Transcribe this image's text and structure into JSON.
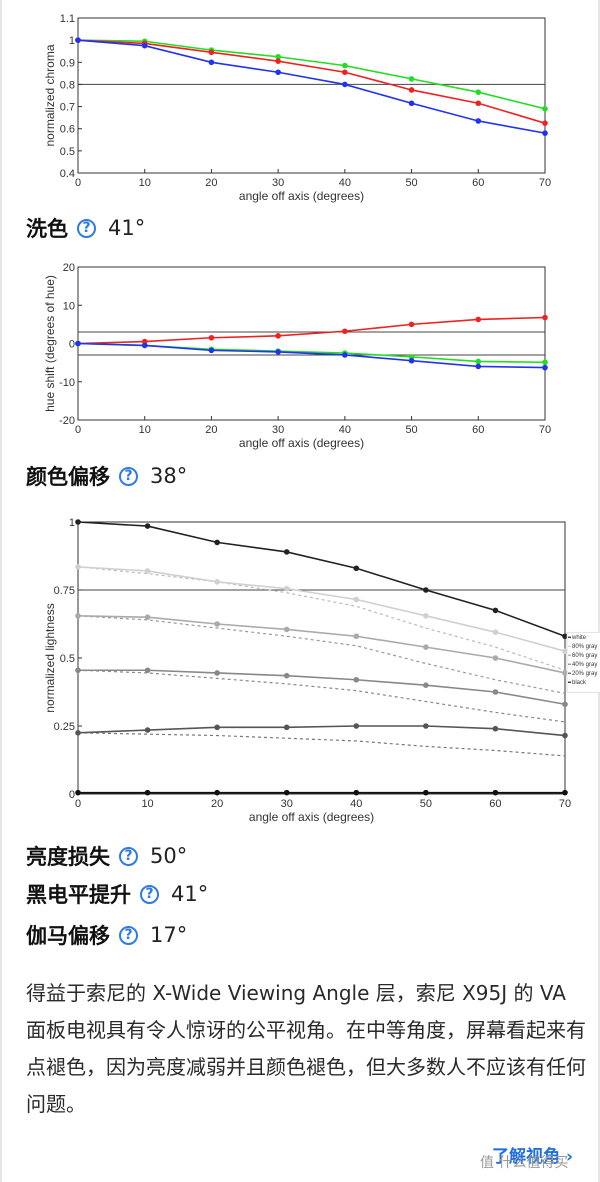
{
  "chart_data": [
    {
      "type": "line",
      "xlabel": "angle off axis (degrees)",
      "ylabel": "normalized chroma",
      "xlim": [
        0,
        70
      ],
      "ylim": [
        0.4,
        1.1
      ],
      "x_ticks": [
        0,
        10,
        20,
        30,
        40,
        50,
        60,
        70
      ],
      "y_ticks": [
        0.4,
        0.5,
        0.6,
        0.7,
        0.8,
        0.9,
        1,
        1.1
      ],
      "y_tick_labels": [
        "0.4",
        "0.5",
        "0.6",
        "0.7",
        "0.8",
        "0.9",
        "1",
        "1.1"
      ],
      "reference_lines": [
        0.8
      ],
      "x": [
        0,
        10,
        20,
        30,
        40,
        50,
        60,
        70
      ],
      "series": [
        {
          "color": "#22dd22",
          "values": [
            1.0,
            0.995,
            0.955,
            0.925,
            0.885,
            0.825,
            0.765,
            0.69
          ]
        },
        {
          "color": "#ee2222",
          "values": [
            1.0,
            0.985,
            0.945,
            0.905,
            0.855,
            0.775,
            0.715,
            0.625
          ]
        },
        {
          "color": "#2233ee",
          "values": [
            1.0,
            0.975,
            0.9,
            0.855,
            0.8,
            0.715,
            0.635,
            0.58
          ]
        }
      ]
    },
    {
      "type": "line",
      "xlabel": "angle off axis (degrees)",
      "ylabel": "hue shift (degrees of hue)",
      "xlim": [
        0,
        70
      ],
      "ylim": [
        -20,
        20
      ],
      "x_ticks": [
        0,
        10,
        20,
        30,
        40,
        50,
        60,
        70
      ],
      "y_ticks": [
        -20,
        -10,
        0,
        10,
        20
      ],
      "y_tick_labels": [
        "-20",
        "-10",
        "0",
        "10",
        "20"
      ],
      "reference_lines": [
        3,
        -3
      ],
      "x": [
        0,
        10,
        20,
        30,
        40,
        50,
        60,
        70
      ],
      "series": [
        {
          "color": "#ee2222",
          "values": [
            0,
            0.5,
            1.5,
            2.0,
            3.2,
            5.0,
            6.3,
            6.8
          ]
        },
        {
          "color": "#22dd22",
          "values": [
            0,
            -0.5,
            -1.5,
            -2.0,
            -2.5,
            -3.5,
            -4.7,
            -4.9
          ]
        },
        {
          "color": "#2233ee",
          "values": [
            0,
            -0.5,
            -1.8,
            -2.2,
            -3.0,
            -4.5,
            -6.0,
            -6.3
          ]
        }
      ]
    },
    {
      "type": "line",
      "xlabel": "angle off axis (degrees)",
      "ylabel": "normalized lightness",
      "xlim": [
        0,
        70
      ],
      "ylim": [
        0,
        1
      ],
      "x_ticks": [
        0,
        10,
        20,
        30,
        40,
        50,
        60,
        70
      ],
      "y_ticks": [
        0,
        0.25,
        0.5,
        0.75,
        1
      ],
      "y_tick_labels": [
        "0",
        "0.25",
        "0.5",
        "0.75",
        "1"
      ],
      "reference_lines": [
        0.75
      ],
      "x": [
        0,
        10,
        20,
        30,
        40,
        50,
        60,
        70
      ],
      "series": [
        {
          "name": "white",
          "color": "#222222",
          "values": [
            1.0,
            0.985,
            0.925,
            0.89,
            0.83,
            0.75,
            0.675,
            0.58
          ]
        },
        {
          "name": "80% gray",
          "color": "#d0d0d0",
          "values": [
            0.835,
            0.82,
            0.78,
            0.755,
            0.715,
            0.655,
            0.595,
            0.525
          ]
        },
        {
          "name": "60% gray",
          "color": "#aaaaaa",
          "values": [
            0.655,
            0.65,
            0.625,
            0.605,
            0.58,
            0.54,
            0.5,
            0.445
          ]
        },
        {
          "name": "40% gray",
          "color": "#888888",
          "values": [
            0.455,
            0.455,
            0.445,
            0.435,
            0.42,
            0.4,
            0.375,
            0.33
          ]
        },
        {
          "name": "20% gray",
          "color": "#555555",
          "values": [
            0.225,
            0.235,
            0.245,
            0.245,
            0.25,
            0.25,
            0.24,
            0.215
          ]
        },
        {
          "name": "black",
          "color": "#111111",
          "values": [
            0.005,
            0.005,
            0.005,
            0.005,
            0.005,
            0.005,
            0.005,
            0.005
          ]
        }
      ],
      "dotted_series": [
        {
          "color": "#bbbbbb",
          "values": [
            0.835,
            0.81,
            0.78,
            0.74,
            0.69,
            0.61,
            0.54,
            0.455
          ]
        },
        {
          "color": "#999999",
          "values": [
            0.655,
            0.64,
            0.61,
            0.58,
            0.545,
            0.48,
            0.42,
            0.37
          ]
        },
        {
          "color": "#888888",
          "values": [
            0.455,
            0.445,
            0.425,
            0.405,
            0.38,
            0.34,
            0.3,
            0.265
          ]
        },
        {
          "color": "#777777",
          "values": [
            0.225,
            0.22,
            0.215,
            0.205,
            0.195,
            0.175,
            0.16,
            0.14
          ]
        }
      ]
    }
  ],
  "metrics": {
    "color_washout": {
      "label": "洗色",
      "value": "41°"
    },
    "color_shift": {
      "label": "颜色偏移",
      "value": "38°"
    },
    "brightness_loss": {
      "label": "亮度损失",
      "value": "50°"
    },
    "black_level_raise": {
      "label": "黑电平提升",
      "value": "41°"
    },
    "gamma_shift": {
      "label": "伽马偏移",
      "value": "17°"
    }
  },
  "help_glyph": "?",
  "description": "得益于索尼的 X-Wide Viewing Angle 层，索尼 X95J 的 VA 面板电视具有令人惊讶的公平视角。在中等角度，屏幕看起来有点褪色，因为亮度减弱并且颜色褪色，但大多数人不应该有任何问题。",
  "learn_more": {
    "label": "了解视角",
    "chevron": "›"
  },
  "watermark": "值 什么值得买",
  "icons": {
    "help": "help-circle-icon",
    "chevron": "chevron-right-icon"
  }
}
